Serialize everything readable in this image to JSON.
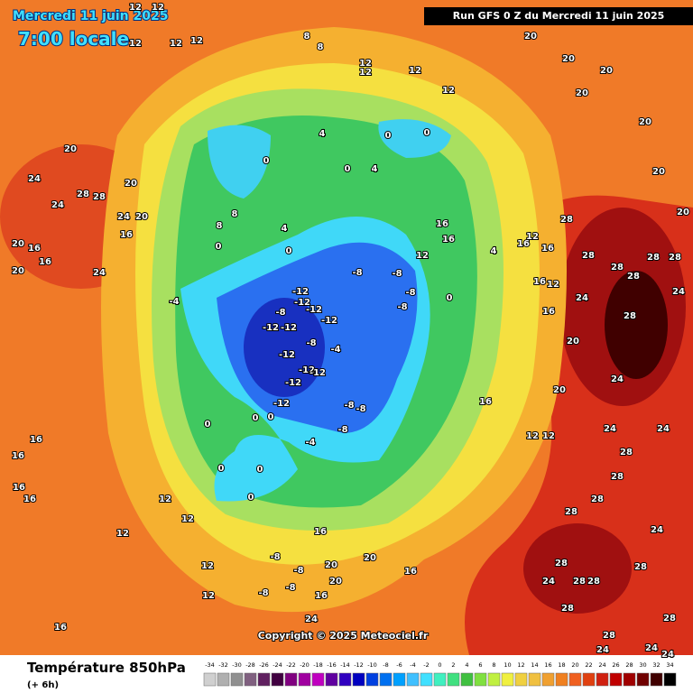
{
  "header": {
    "date": "Mercredi 11 juin 2025",
    "time": "7:00 locale",
    "run": "Run GFS 0 Z du Mercredi 11 juin 2025"
  },
  "copyright": "Copyright © 2025 Meteociel.fr",
  "footer": {
    "title": "Température 850hPa",
    "step": "(+ 6h)"
  },
  "legend": {
    "ticks": [
      -34,
      -32,
      -30,
      -28,
      -26,
      -24,
      -22,
      -20,
      -18,
      -16,
      -14,
      -12,
      -10,
      -8,
      -6,
      -4,
      -2,
      0,
      2,
      4,
      6,
      8,
      10,
      12,
      14,
      16,
      18,
      20,
      22,
      24,
      26,
      28,
      30,
      32,
      34
    ],
    "colors": [
      "#d0d0d0",
      "#b0b0b0",
      "#909090",
      "#806080",
      "#602060",
      "#400040",
      "#800080",
      "#a000a0",
      "#c000c0",
      "#6000a0",
      "#3000c0",
      "#0000c0",
      "#0040e0",
      "#0070f0",
      "#00a0ff",
      "#40c0ff",
      "#40e0ff",
      "#40f0c0",
      "#40e080",
      "#40c040",
      "#80e040",
      "#c0f040",
      "#f0f040",
      "#f0d040",
      "#f0c040",
      "#f0a030",
      "#f08020",
      "#f06020",
      "#e04010",
      "#d02010",
      "#c00000",
      "#a00000",
      "#700000",
      "#400000",
      "#000000"
    ]
  },
  "map_labels": [
    12,
    12,
    12,
    12,
    12,
    8,
    8,
    12,
    12,
    12,
    12,
    20,
    20,
    20,
    20,
    20,
    20,
    20,
    20,
    24,
    24,
    28,
    28,
    20,
    24,
    20,
    20,
    16,
    16,
    20,
    24,
    16,
    8,
    8,
    0,
    4,
    0,
    0,
    4,
    0,
    0,
    0,
    4,
    -4,
    -12,
    -12,
    -12,
    -12,
    -8,
    -12,
    -12,
    -8,
    -4,
    -12,
    -12,
    -12,
    -12,
    -12,
    -8,
    -8,
    -8,
    -8,
    -8,
    -8,
    -8,
    -4,
    0,
    0,
    0,
    0,
    0,
    0,
    12,
    0,
    4,
    16,
    16,
    12,
    16,
    16,
    12,
    16,
    16,
    16,
    20,
    12,
    12,
    28,
    28,
    28,
    28,
    28,
    28,
    24,
    28,
    24,
    20,
    24,
    24,
    24,
    28,
    28,
    28,
    28,
    24,
    28,
    28,
    28,
    24,
    28,
    28,
    28,
    24,
    28,
    24,
    24,
    16,
    16,
    16,
    16,
    12,
    12,
    12,
    12,
    12,
    -8,
    -8,
    -8,
    -8,
    16,
    16,
    20,
    20,
    20,
    24,
    16,
    16
  ]
}
